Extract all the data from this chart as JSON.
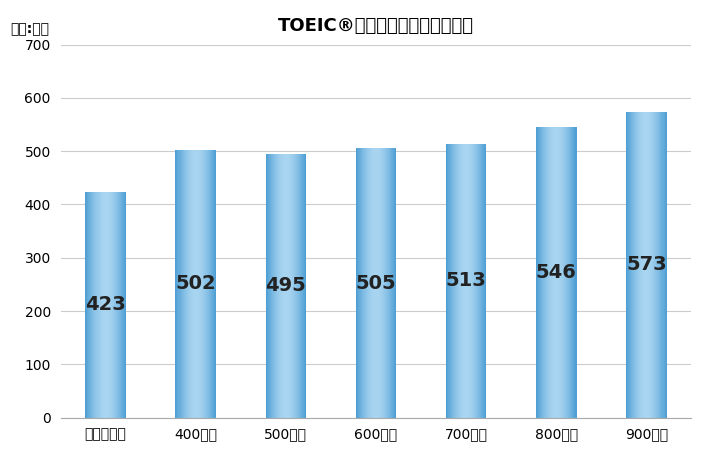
{
  "title": "TOEIC®テストスコア別平均年収",
  "unit_label": "単位:万円",
  "categories": [
    "スコアなし",
    "400点台",
    "500点台",
    "600点台",
    "700点台",
    "800点台",
    "900点台"
  ],
  "values": [
    423,
    502,
    495,
    505,
    513,
    546,
    573
  ],
  "bar_color_left": "#4f9fd4",
  "bar_color_center": "#a8d4f0",
  "bar_color_right": "#4f9fd4",
  "ylim": [
    0,
    700
  ],
  "yticks": [
    0,
    100,
    200,
    300,
    400,
    500,
    600,
    700
  ],
  "label_fontsize": 14,
  "label_color": "#222222",
  "title_fontsize": 13,
  "unit_fontsize": 10,
  "tick_fontsize": 10,
  "background_color": "#ffffff",
  "grid_color": "#cccccc",
  "bar_width": 0.45
}
